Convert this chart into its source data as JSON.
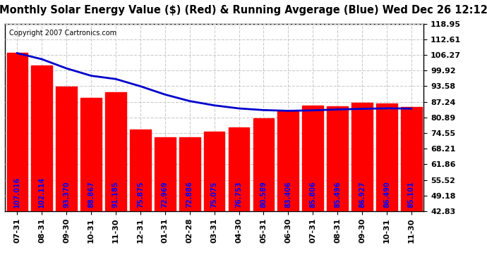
{
  "title": "Monthly Solar Energy Value ($) (Red) & Running Avgerage (Blue) Wed Dec 26 12:12",
  "copyright": "Copyright 2007 Cartronics.com",
  "categories": [
    "07-31",
    "08-31",
    "09-30",
    "10-31",
    "11-30",
    "12-31",
    "01-31",
    "02-28",
    "03-31",
    "04-30",
    "05-31",
    "06-30",
    "07-31",
    "08-31",
    "09-30",
    "10-31",
    "11-30"
  ],
  "bar_values": [
    107.016,
    102.114,
    93.37,
    88.867,
    91.185,
    75.875,
    72.969,
    72.886,
    75.075,
    76.753,
    80.589,
    83.406,
    85.806,
    85.496,
    86.927,
    86.49,
    85.101
  ],
  "running_avg": [
    107.016,
    104.565,
    100.833,
    97.842,
    96.51,
    93.571,
    90.214,
    87.56,
    85.807,
    84.571,
    83.893,
    83.593,
    83.774,
    84.143,
    84.413,
    84.608,
    84.503
  ],
  "ylim_min": 42.83,
  "ylim_max": 118.95,
  "yticks": [
    42.83,
    49.18,
    55.52,
    61.86,
    68.21,
    74.55,
    80.89,
    87.24,
    93.58,
    99.92,
    106.27,
    112.61,
    118.95
  ],
  "bar_color": "#FF0000",
  "line_color": "#0000CC",
  "bar_label_color": "#0000FF",
  "bg_color": "#FFFFFF",
  "plot_bg_color": "#FFFFFF",
  "grid_color": "#CCCCCC",
  "title_color": "#000000",
  "copyright_color": "#000000",
  "bar_edge_color": "#FF0000",
  "title_fontsize": 10.5,
  "label_fontsize": 7.0,
  "tick_fontsize": 8,
  "copyright_fontsize": 7
}
